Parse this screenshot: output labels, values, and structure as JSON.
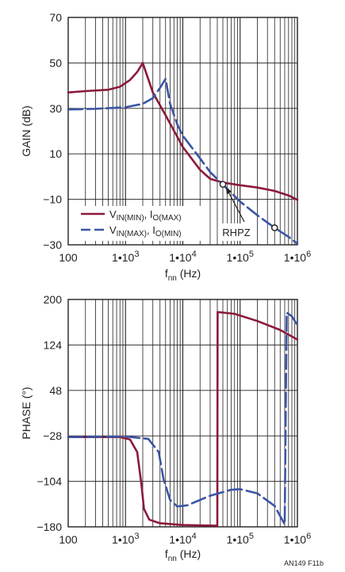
{
  "chart_data": [
    {
      "type": "line",
      "xlabel": "f",
      "xlabel_sub": "nn",
      "xlabel_unit": " (Hz)",
      "ylabel": "GAIN (dB)",
      "xscale": "log",
      "xlim": [
        100,
        1000000
      ],
      "ylim": [
        -30,
        70
      ],
      "yticks": [
        -30,
        -10,
        10,
        30,
        50,
        70
      ],
      "xtick_labels": [
        {
          "base": "100",
          "exp": ""
        },
        {
          "base": "1•10",
          "exp": "3"
        },
        {
          "base": "1•10",
          "exp": "4"
        },
        {
          "base": "1•10",
          "exp": "5"
        },
        {
          "base": "1•10",
          "exp": "6"
        }
      ],
      "grid": true,
      "legend_position": "lower-left",
      "series": [
        {
          "name": "V_IN(MIN), I_O(MAX)",
          "legend": {
            "v": "V",
            "vsub": "IN(MIN)",
            "sep": ", I",
            "isub": "O(MAX)"
          },
          "color": "#8b1a3a",
          "dash": "solid",
          "points": [
            [
              100,
              37
            ],
            [
              200,
              37.6
            ],
            [
              500,
              38.2
            ],
            [
              800,
              39.5
            ],
            [
              1200,
              42.5
            ],
            [
              1600,
              46
            ],
            [
              2000,
              50
            ],
            [
              2300,
              45.5
            ],
            [
              3000,
              37
            ],
            [
              5000,
              27
            ],
            [
              10000,
              13
            ],
            [
              20000,
              3
            ],
            [
              30000,
              -1
            ],
            [
              50000,
              -2.6
            ],
            [
              100000,
              -3.8
            ],
            [
              200000,
              -4.8
            ],
            [
              400000,
              -6.3
            ],
            [
              700000,
              -8.3
            ],
            [
              1000000,
              -10.2
            ]
          ]
        },
        {
          "name": "V_IN(MAX), I_O(MIN)",
          "legend": {
            "v": "V",
            "vsub": "IN(MAX)",
            "sep": ", I",
            "isub": "O(MIN)"
          },
          "color": "#3b55a4",
          "dash": "dashed",
          "points": [
            [
              100,
              29.5
            ],
            [
              300,
              29.8
            ],
            [
              1000,
              30.5
            ],
            [
              2000,
              32
            ],
            [
              3000,
              34.5
            ],
            [
              4000,
              39
            ],
            [
              5000,
              43
            ],
            [
              6000,
              32
            ],
            [
              8000,
              23
            ],
            [
              10000,
              18
            ],
            [
              20000,
              8
            ],
            [
              30000,
              2
            ],
            [
              50000,
              -3.5
            ],
            [
              100000,
              -11
            ],
            [
              200000,
              -17
            ],
            [
              400000,
              -22.5
            ],
            [
              700000,
              -26.5
            ],
            [
              1000000,
              -29.5
            ]
          ]
        }
      ],
      "markers": [
        [
          50000,
          -3.4
        ],
        [
          400000,
          -22.5
        ]
      ],
      "annotation": {
        "text": "RHPZ",
        "at": [
          50000,
          -3.4
        ]
      }
    },
    {
      "type": "line",
      "xlabel": "f",
      "xlabel_sub": "nn",
      "xlabel_unit": " (Hz)",
      "ylabel": "PHASE (°)",
      "xscale": "log",
      "xlim": [
        100,
        1000000
      ],
      "ylim": [
        -180,
        200
      ],
      "yticks": [
        -180,
        -104,
        -28,
        48,
        124,
        200
      ],
      "xtick_labels": [
        {
          "base": "100",
          "exp": ""
        },
        {
          "base": "1•10",
          "exp": "3"
        },
        {
          "base": "1•10",
          "exp": "4"
        },
        {
          "base": "1•10",
          "exp": "5"
        },
        {
          "base": "1•10",
          "exp": "6"
        }
      ],
      "grid": true,
      "series": [
        {
          "name": "V_IN(MIN), I_O(MAX)",
          "color": "#8b1a3a",
          "dash": "solid",
          "points": [
            [
              100,
              -30
            ],
            [
              800,
              -30
            ],
            [
              1200,
              -34
            ],
            [
              1600,
              -55
            ],
            [
              1900,
              -110
            ],
            [
              2100,
              -150
            ],
            [
              2600,
              -168
            ],
            [
              4000,
              -174
            ],
            [
              10000,
              -177
            ],
            [
              40000,
              -178
            ],
            [
              40500,
              179
            ],
            [
              80000,
              176
            ],
            [
              200000,
              164
            ],
            [
              500000,
              149
            ],
            [
              1000000,
              133
            ]
          ]
        },
        {
          "name": "V_IN(MAX), I_O(MIN)",
          "color": "#3b55a4",
          "dash": "dashed",
          "points": [
            [
              100,
              -30
            ],
            [
              1000,
              -29
            ],
            [
              2500,
              -33
            ],
            [
              3800,
              -55
            ],
            [
              4600,
              -100
            ],
            [
              6000,
              -135
            ],
            [
              8000,
              -146
            ],
            [
              12000,
              -144
            ],
            [
              30000,
              -128
            ],
            [
              70000,
              -118
            ],
            [
              100000,
              -117
            ],
            [
              200000,
              -124
            ],
            [
              400000,
              -145
            ],
            [
              600000,
              -176
            ],
            [
              650000,
              178
            ],
            [
              800000,
              172
            ],
            [
              1000000,
              157
            ]
          ]
        }
      ]
    }
  ],
  "footer": {
    "figure_code": "AN149 F11b"
  }
}
